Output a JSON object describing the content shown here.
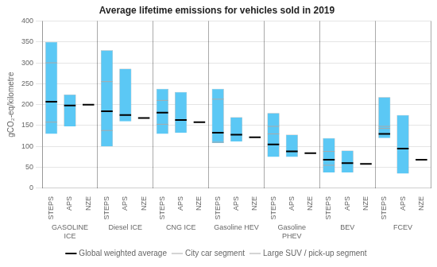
{
  "chart_data": {
    "type": "bar",
    "title": "Average lifetime emissions for vehicles sold in 2019",
    "ylabel": "gCO₂-eq/kilometre",
    "categories": [
      "STEPS",
      "APS",
      "NZE",
      "STEPS",
      "APS",
      "NZE",
      "STEPS",
      "APS",
      "NZE",
      "STEPS",
      "APS",
      "NZE",
      "STEPS",
      "APS",
      "NZE",
      "STEPS",
      "APS",
      "NZE",
      "STEPS",
      "APS",
      "NZE"
    ],
    "groups": [
      "GASOLINE\nICE",
      "Diesel ICE",
      "CNG ICE",
      "Gasoline HEV",
      "Gasoline\nPHEV",
      "BEV",
      "FCEV"
    ],
    "series": [
      {
        "type": "bar",
        "color": "#5BC8F5",
        "values": [
          [
            130,
            350
          ],
          [
            148,
            224
          ],
          null,
          [
            100,
            330
          ],
          [
            160,
            286
          ],
          null,
          [
            130,
            238
          ],
          [
            133,
            230
          ],
          null,
          [
            108,
            238
          ],
          [
            112,
            170
          ],
          null,
          [
            75,
            180
          ],
          [
            75,
            128
          ],
          null,
          [
            38,
            120
          ],
          [
            38,
            90
          ],
          null,
          [
            120,
            218
          ],
          [
            35,
            175
          ],
          null
        ]
      },
      {
        "name": "Global weighted average",
        "type": "line",
        "marker": "dash",
        "color": "#000000",
        "values": [
          207,
          198,
          200,
          184,
          175,
          168,
          181,
          163,
          158,
          133,
          128,
          122,
          105,
          88,
          84,
          68,
          60,
          58,
          130,
          95,
          68
        ]
      },
      {
        "name": "City car segment",
        "type": "line",
        "marker": "dash",
        "color": "#aaaaaa",
        "values": [
          158,
          null,
          null,
          138,
          null,
          null,
          153,
          null,
          null,
          110,
          null,
          null,
          130,
          null,
          null,
          55,
          null,
          null,
          143,
          null,
          null
        ]
      },
      {
        "name": "Large SUV / pick-up segment",
        "type": "line",
        "marker": "dash",
        "color": "#aaaaaa",
        "values": [
          300,
          null,
          null,
          255,
          null,
          null,
          210,
          null,
          null,
          213,
          null,
          null,
          148,
          null,
          null,
          88,
          null,
          null,
          148,
          null,
          null
        ]
      }
    ],
    "ylim": [
      0,
      400
    ],
    "yticks": [
      0,
      50,
      100,
      150,
      200,
      250,
      300,
      350,
      400
    ],
    "grid": true,
    "legend": "bottom"
  }
}
